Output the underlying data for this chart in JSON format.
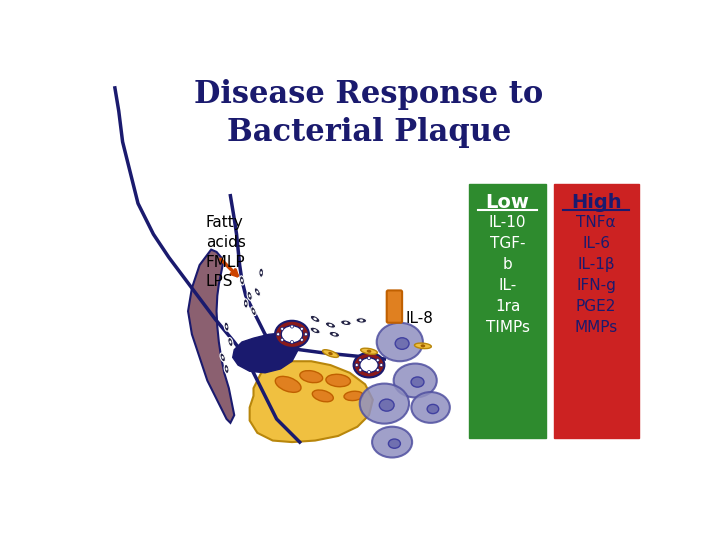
{
  "title_line1": "Disease Response to",
  "title_line2": "Bacterial Plaque",
  "title_color": "#1a1a6e",
  "title_fontsize": 22,
  "bg_color": "#ffffff",
  "label_fatty": "Fatty\nacids\nFMLP\nLPS",
  "label_il8": "IL-8",
  "low_box_color": "#2e8b2e",
  "low_title": "Low",
  "low_items_str": "IL-10\nTGF-\nb\nIL-\n1ra\nTIMPs",
  "low_text_color": "#ffffff",
  "high_box_color": "#cc2222",
  "high_title": "High",
  "high_items_str": "TNFα\nIL-6\nIL-1β\nIFN-g\nPGE2\nMMPs",
  "high_text_color": "#1a1a6e",
  "dark_navy": "#1a1a6e",
  "arrow_color": "#cc4400",
  "mauve_color": "#8b6070",
  "yellow_color": "#f0c040",
  "orange_color": "#e08020",
  "lavender_color": "#9090c0",
  "dark_red_color": "#8b1a1a"
}
